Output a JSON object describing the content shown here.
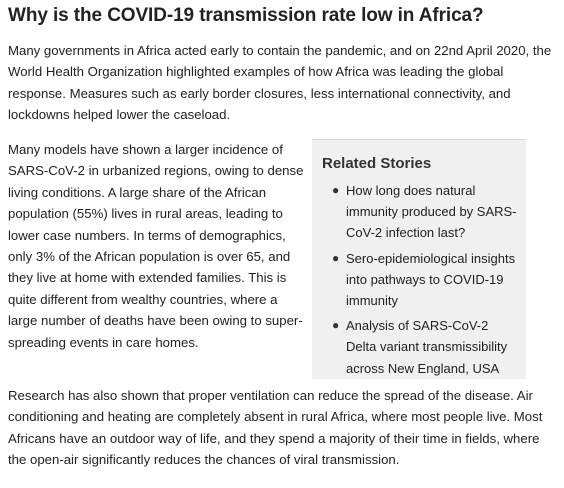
{
  "article": {
    "title": "Why is the COVID-19 transmission rate low in Africa?",
    "paragraphs": [
      "Many governments in Africa acted early to contain the pandemic, and on 22nd April 2020, the World Health Organization highlighted examples of how Africa was leading the global response. Measures such as early border closures, less international connectivity, and lockdowns helped lower the caseload.",
      "Many models have shown a larger incidence of SARS-CoV-2 in urbanized regions, owing to dense living conditions. A large share of the African population (55%) lives in rural areas, leading to lower case numbers. In terms of demographics, only 3% of the African population is over 65, and they live at home with extended families. This is quite different from wealthy countries, where a large number of deaths have been owing to super-spreading events in care homes.",
      "Research has also shown that proper ventilation can reduce the spread of the disease. Air conditioning and heating are completely absent in rural Africa, where most people live. Most Africans have an outdoor way of life, and they spend a majority of their time in fields, where the open-air significantly reduces the chances of viral transmission."
    ]
  },
  "related_stories": {
    "heading": "Related Stories",
    "items": [
      "How long does natural immunity produced by SARS-CoV-2 infection last?",
      "Sero-epidemiological insights into pathways to COVID-19 immunity",
      "Analysis of SARS-CoV-2 Delta variant transmissibility across New England, USA"
    ]
  }
}
